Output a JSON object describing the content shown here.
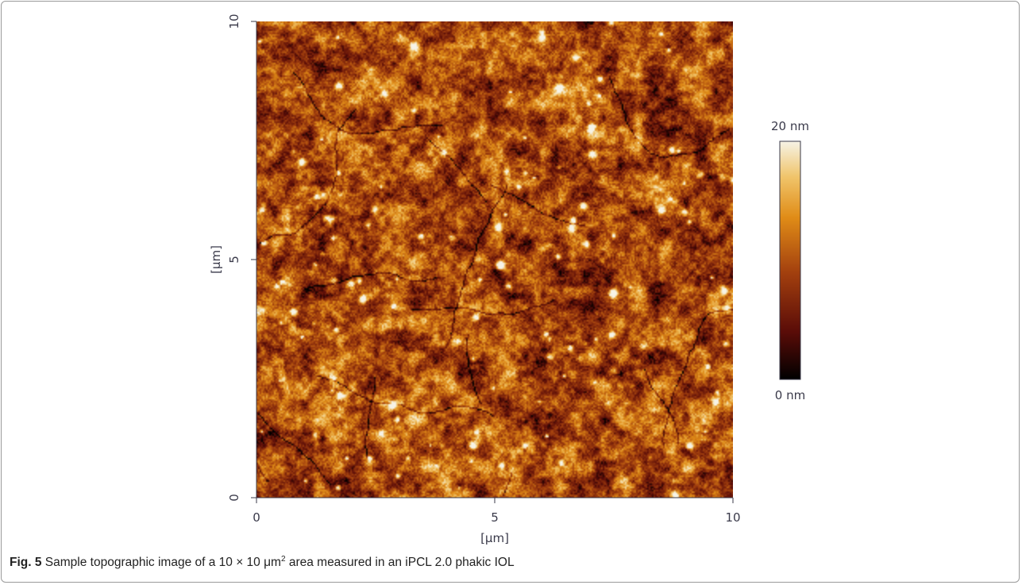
{
  "caption": {
    "label": "Fig. 5",
    "text_before": "Sample topographic image of a 10 × 10 μm",
    "superscript": "2",
    "text_after": " area measured in an iPCL 2.0 phakic IOL"
  },
  "chart_data": {
    "type": "heatmap",
    "title": "",
    "xlabel": "[μm]",
    "ylabel": "[μm]",
    "xlim": [
      0,
      10
    ],
    "ylim": [
      0,
      10
    ],
    "x_ticks": [
      "0",
      "5",
      "10"
    ],
    "y_ticks": [
      "0",
      "5",
      "10"
    ],
    "colorbar": {
      "min_label": "0 nm",
      "max_label": "20 nm",
      "range": [
        0,
        20
      ],
      "unit": "nm",
      "colors": [
        "#000000",
        "#5a0c08",
        "#a3400e",
        "#e08c17",
        "#f0c46a",
        "#f6f3e6"
      ]
    },
    "surface_description": "Granular textured surface; height mostly 8–14 nm with sparse bright peaks near 20 nm and dark grooves near 0 nm"
  }
}
